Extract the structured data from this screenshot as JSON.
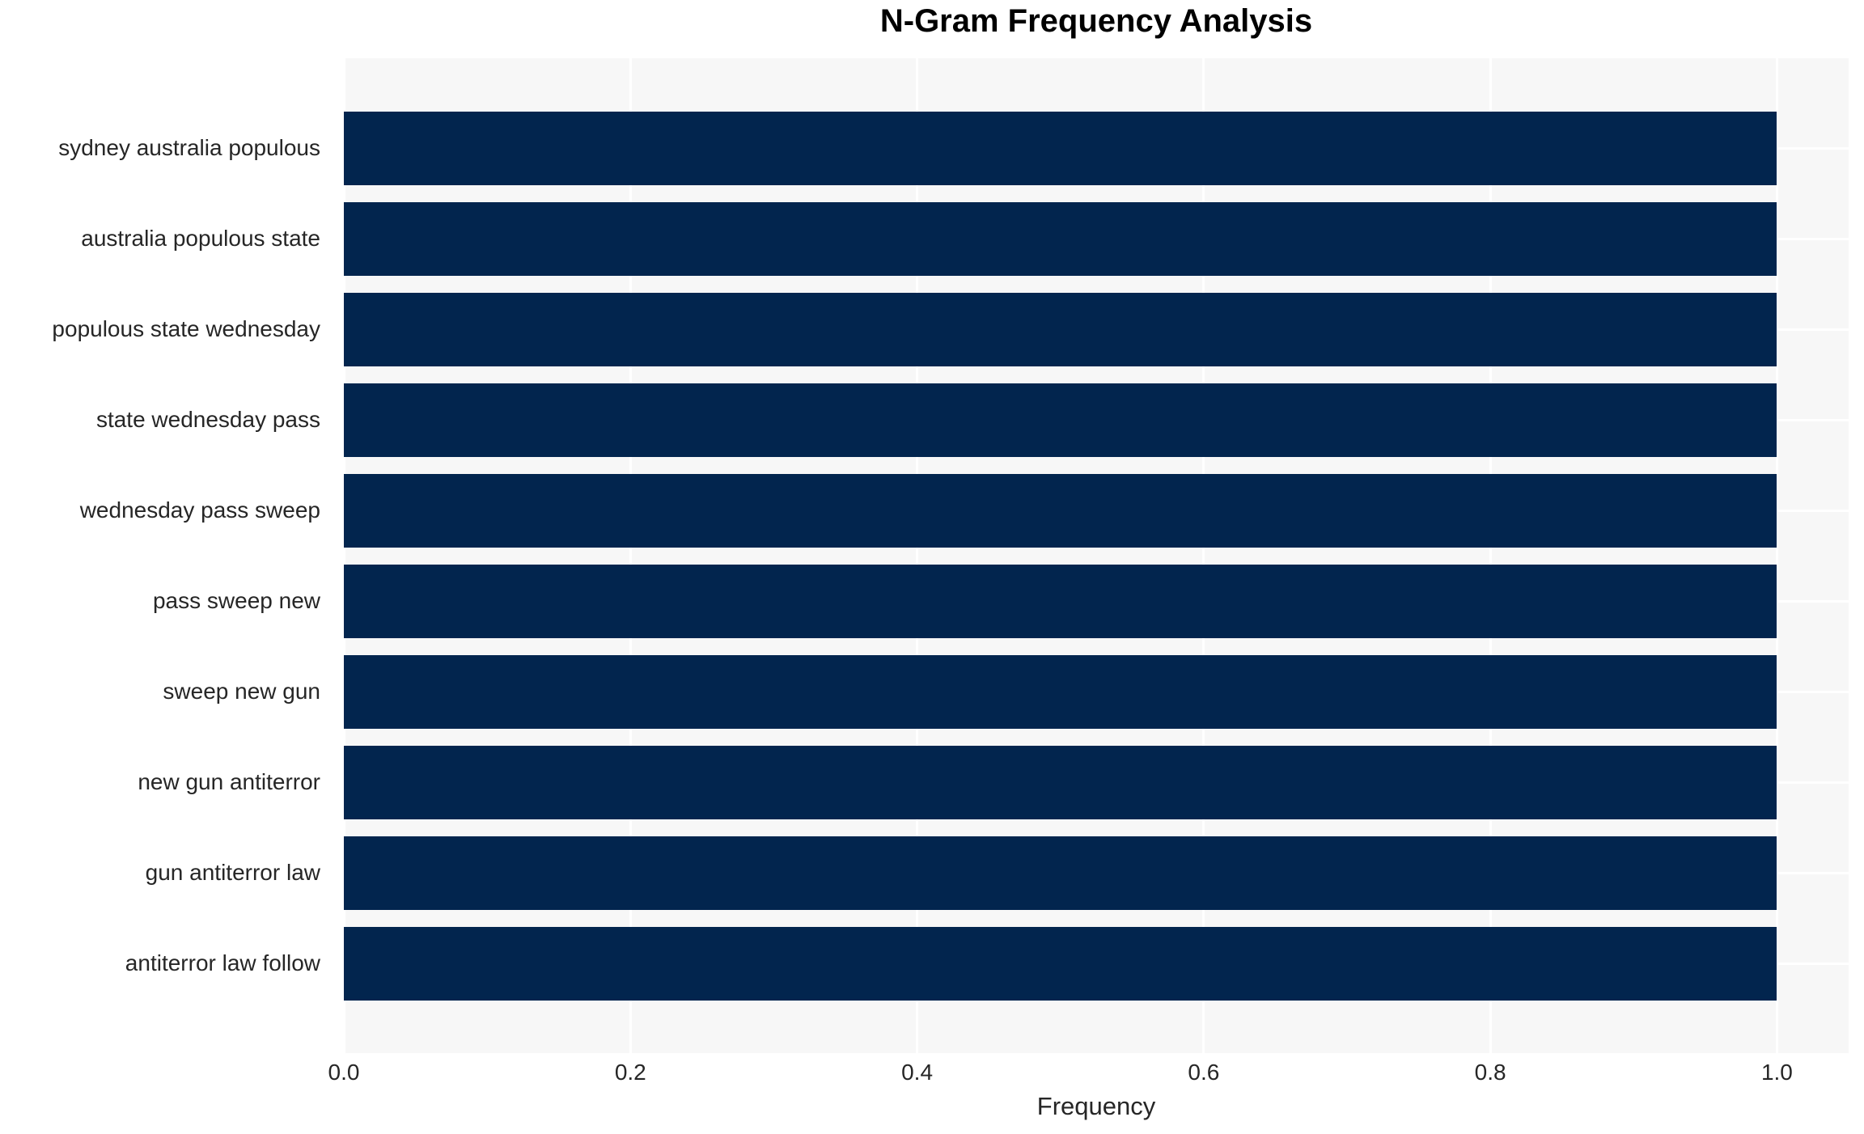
{
  "title": "N-Gram Frequency Analysis",
  "axes": {
    "xlabel": "Frequency",
    "x_tick_labels": [
      "0.0",
      "0.2",
      "0.4",
      "0.6",
      "0.8",
      "1.0"
    ]
  },
  "chart_data": {
    "type": "bar",
    "orientation": "horizontal",
    "title": "N-Gram Frequency Analysis",
    "xlabel": "Frequency",
    "ylabel": "",
    "categories": [
      "sydney australia populous",
      "australia populous state",
      "populous state wednesday",
      "state wednesday pass",
      "wednesday pass sweep",
      "pass sweep new",
      "sweep new gun",
      "new gun antiterror",
      "gun antiterror law",
      "antiterror law follow"
    ],
    "values": [
      1.0,
      1.0,
      1.0,
      1.0,
      1.0,
      1.0,
      1.0,
      1.0,
      1.0,
      1.0
    ],
    "x_ticks": [
      0.0,
      0.2,
      0.4,
      0.6,
      0.8,
      1.0
    ],
    "xlim": [
      0,
      1.05
    ],
    "grid": true,
    "legend": false,
    "colors": {
      "bar": "#02254e",
      "plot_background": "#f7f7f7",
      "figure_background": "#ffffff",
      "gridline": "#ffffff",
      "tick_text": "#262626",
      "title_text": "#000000"
    }
  }
}
